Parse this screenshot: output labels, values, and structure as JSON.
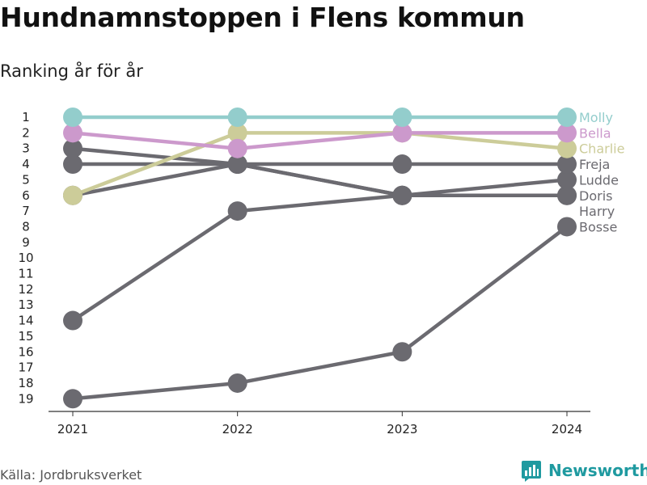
{
  "header": {
    "title": "Hundnamnstoppen i Flens kommun",
    "subtitle": "Ranking år för år"
  },
  "footer": {
    "source": "Källa: Jordbruksverket",
    "brand": "Newsworthy"
  },
  "colors": {
    "molly": "#93cdcc",
    "bella": "#cc99cc",
    "charlie": "#cccc99",
    "gray": "#6b6a70",
    "axis": "#333333",
    "brand": "#1f9aa0"
  },
  "chart_data": {
    "type": "line",
    "x": [
      "2021",
      "2022",
      "2023",
      "2024"
    ],
    "y_ticks": [
      "1",
      "2",
      "3",
      "4",
      "5",
      "6",
      "7",
      "8",
      "9",
      "10",
      "11",
      "12",
      "13",
      "14",
      "15",
      "16",
      "17",
      "18",
      "19"
    ],
    "ylim": [
      1,
      19
    ],
    "y_inverted": true,
    "grid": false,
    "series": [
      {
        "name": "Bosse",
        "values": [
          19,
          18,
          16,
          8
        ],
        "color": "#6b6a70"
      },
      {
        "name": "Harry",
        "values": [
          14,
          7,
          6,
          6
        ],
        "color": "#6b6a70"
      },
      {
        "name": "Doris",
        "values": [
          3,
          4,
          6,
          6
        ],
        "color": "#6b6a70"
      },
      {
        "name": "Ludde",
        "values": [
          6,
          4,
          6,
          5
        ],
        "color": "#6b6a70"
      },
      {
        "name": "Freja",
        "values": [
          4,
          4,
          4,
          4
        ],
        "color": "#6b6a70"
      },
      {
        "name": "Charlie",
        "values": [
          6,
          2,
          2,
          3
        ],
        "color": "#cccc99"
      },
      {
        "name": "Bella",
        "values": [
          2,
          3,
          2,
          2
        ],
        "color": "#cc99cc"
      },
      {
        "name": "Molly",
        "values": [
          1,
          1,
          1,
          1
        ],
        "color": "#93cdcc"
      }
    ],
    "end_labels": [
      {
        "name": "Molly",
        "color": "#93cdcc"
      },
      {
        "name": "Bella",
        "color": "#cc99cc"
      },
      {
        "name": "Charlie",
        "color": "#cccc99"
      },
      {
        "name": "Freja",
        "color": "#6b6a70"
      },
      {
        "name": "Ludde",
        "color": "#6b6a70"
      },
      {
        "name": "Doris",
        "color": "#6b6a70"
      },
      {
        "name": "Harry",
        "color": "#6b6a70"
      },
      {
        "name": "Bosse",
        "color": "#6b6a70"
      }
    ]
  }
}
